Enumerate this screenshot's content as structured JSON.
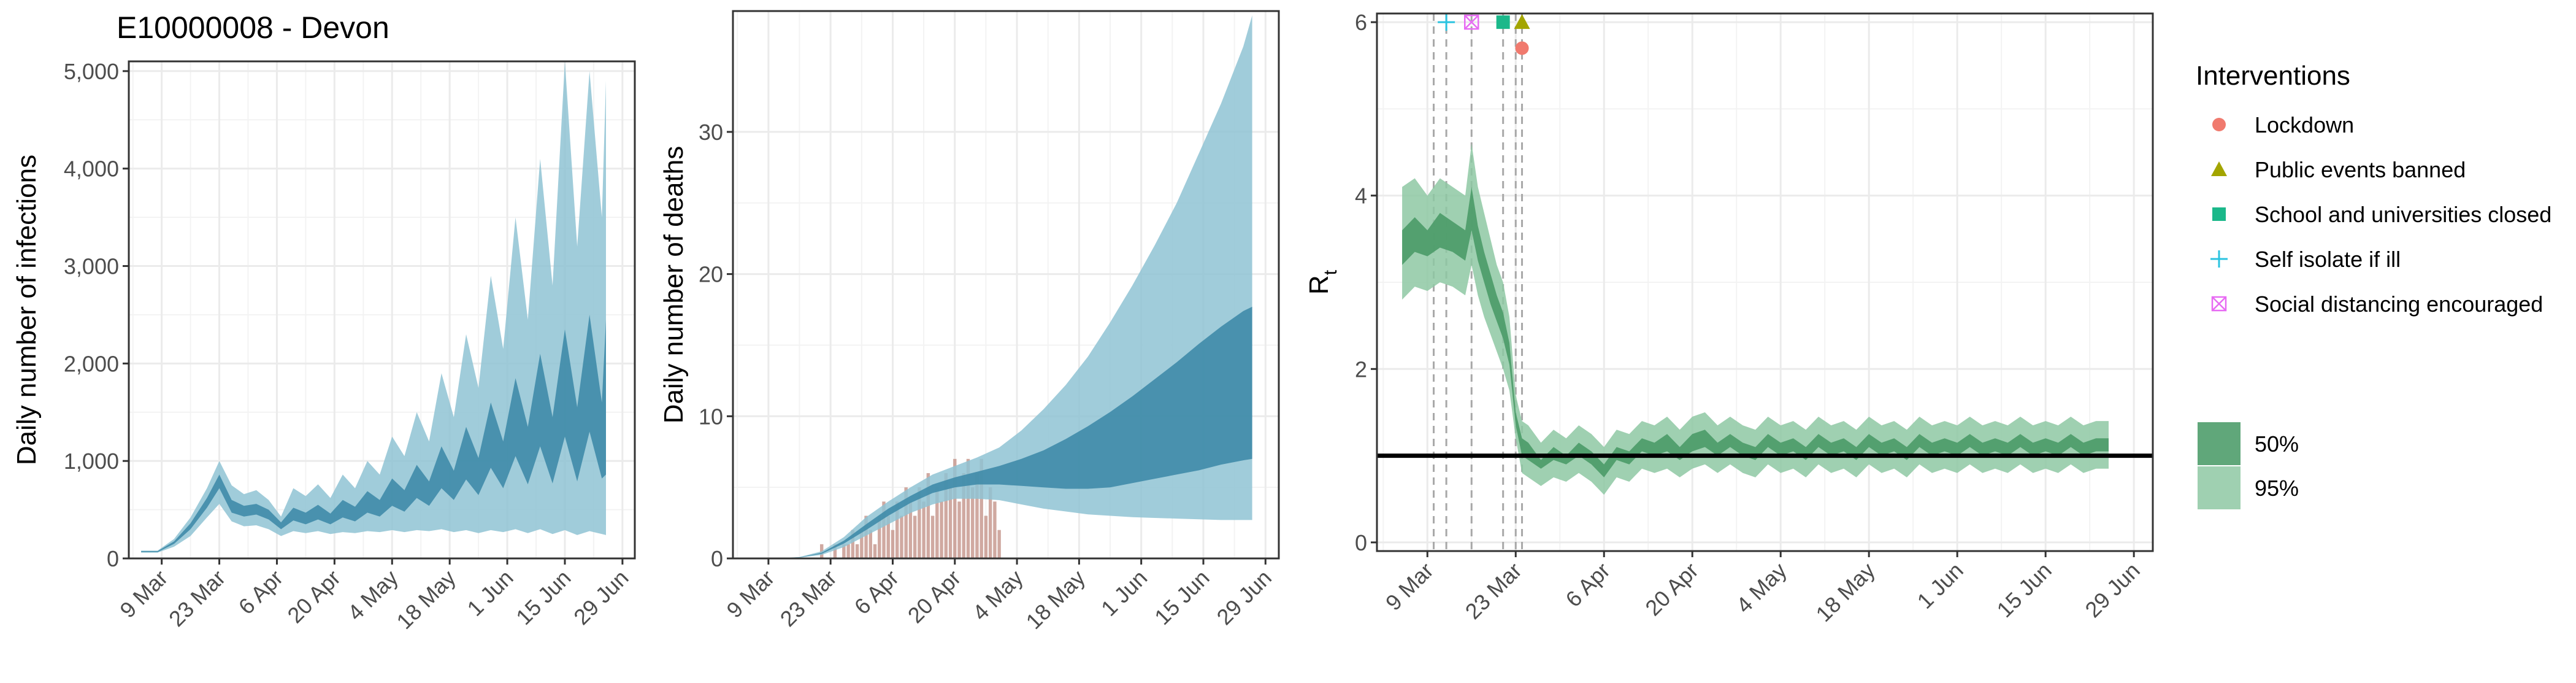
{
  "figure": {
    "title": "E10000008 - Devon"
  },
  "colors": {
    "ci95_blue": "#8fc3d3",
    "ci50_blue": "#3f8ba8",
    "median_blue": "#3f8ba8",
    "deaths_bar": "#c89a91",
    "ci95_green": "#8ec8a3",
    "ci50_green": "#4f9d6c",
    "median_green": "#3e8a5c",
    "lockdown": "#f07a6e",
    "events": "#a3a500",
    "school": "#1bb88a",
    "isolate": "#2ac3e0",
    "distancing": "#e76bf3",
    "gridline": "#ebebeb",
    "axis_text": "#4d4d4d"
  },
  "legend": {
    "interventions_title": "Interventions",
    "interventions": [
      {
        "label": "Lockdown",
        "shape": "circle",
        "color": "#f07a6e"
      },
      {
        "label": "Public events banned",
        "shape": "triangle",
        "color": "#a3a500"
      },
      {
        "label": "School and universities closed",
        "shape": "square",
        "color": "#1bb88a"
      },
      {
        "label": "Self isolate if ill",
        "shape": "plus",
        "color": "#2ac3e0"
      },
      {
        "label": "Social distancing encouraged",
        "shape": "boxx",
        "color": "#e76bf3"
      }
    ],
    "bands": [
      {
        "label": "50%",
        "color": "#4f9d6c"
      },
      {
        "label": "95%",
        "color": "#8ec8a3"
      }
    ]
  },
  "chart_data": [
    {
      "type": "area",
      "title": "E10000008 - Devon",
      "xlabel": "",
      "ylabel": "Daily number of infections",
      "x_ticks": [
        "9 Mar",
        "23 Mar",
        "6 Apr",
        "20 Apr",
        "4 May",
        "18 May",
        "1 Jun",
        "15 Jun",
        "29 Jun"
      ],
      "y_ticks": [
        "0",
        "1,000",
        "2,000",
        "3,000",
        "4,000",
        "5,000"
      ],
      "xlim": [
        "2020-03-01",
        "2020-07-02"
      ],
      "ylim": [
        0,
        5100
      ],
      "grid": true,
      "series": [
        {
          "x": [
            "2020-03-04",
            "2020-03-08",
            "2020-03-12",
            "2020-03-16",
            "2020-03-20",
            "2020-03-23",
            "2020-03-26",
            "2020-03-29",
            "2020-04-01",
            "2020-04-04",
            "2020-04-07",
            "2020-04-10",
            "2020-04-13",
            "2020-04-16",
            "2020-04-19",
            "2020-04-22",
            "2020-04-25",
            "2020-04-28",
            "2020-05-01",
            "2020-05-04",
            "2020-05-07",
            "2020-05-10",
            "2020-05-13",
            "2020-05-16",
            "2020-05-19",
            "2020-05-22",
            "2020-05-25",
            "2020-05-28",
            "2020-05-31",
            "2020-06-03",
            "2020-06-06",
            "2020-06-09",
            "2020-06-12",
            "2020-06-15",
            "2020-06-18",
            "2020-06-21",
            "2020-06-24",
            "2020-06-25"
          ],
          "lower95": [
            60,
            60,
            120,
            230,
            420,
            560,
            380,
            330,
            340,
            300,
            230,
            280,
            260,
            280,
            250,
            270,
            260,
            280,
            270,
            290,
            270,
            290,
            280,
            300,
            270,
            290,
            260,
            290,
            270,
            300,
            260,
            300,
            250,
            290,
            240,
            280,
            250,
            240
          ],
          "upper95": [
            80,
            80,
            200,
            420,
            720,
            1000,
            750,
            660,
            700,
            600,
            430,
            720,
            640,
            760,
            620,
            860,
            720,
            1000,
            860,
            1250,
            1050,
            1500,
            1200,
            1900,
            1450,
            2300,
            1750,
            2900,
            2150,
            3500,
            2450,
            4100,
            2800,
            5100,
            3200,
            5000,
            3500,
            4900
          ],
          "lower50": [
            65,
            65,
            150,
            300,
            520,
            720,
            470,
            430,
            450,
            400,
            300,
            390,
            350,
            400,
            350,
            420,
            380,
            470,
            430,
            540,
            480,
            620,
            540,
            720,
            600,
            810,
            650,
            930,
            720,
            1050,
            760,
            1150,
            770,
            1250,
            790,
            1300,
            820,
            860
          ],
          "upper50": [
            75,
            75,
            175,
            360,
            620,
            860,
            600,
            540,
            560,
            500,
            370,
            520,
            470,
            550,
            460,
            600,
            530,
            690,
            600,
            820,
            700,
            960,
            790,
            1150,
            900,
            1350,
            1030,
            1600,
            1200,
            1850,
            1350,
            2100,
            1450,
            2350,
            1550,
            2500,
            1600,
            2450
          ]
        }
      ]
    },
    {
      "type": "bar",
      "xlabel": "",
      "ylabel": "Daily number of deaths",
      "x_ticks": [
        "9 Mar",
        "23 Mar",
        "6 Apr",
        "20 Apr",
        "4 May",
        "18 May",
        "1 Jun",
        "15 Jun",
        "29 Jun"
      ],
      "y_ticks": [
        "0",
        "10",
        "20",
        "30"
      ],
      "xlim": [
        "2020-03-01",
        "2020-07-02"
      ],
      "ylim": [
        0,
        38.5
      ],
      "grid": true,
      "bars": {
        "x": [
          "2020-03-21",
          "2020-03-22",
          "2020-03-23",
          "2020-03-24",
          "2020-03-25",
          "2020-03-26",
          "2020-03-27",
          "2020-03-28",
          "2020-03-29",
          "2020-03-30",
          "2020-03-31",
          "2020-04-01",
          "2020-04-02",
          "2020-04-03",
          "2020-04-04",
          "2020-04-05",
          "2020-04-06",
          "2020-04-07",
          "2020-04-08",
          "2020-04-09",
          "2020-04-10",
          "2020-04-11",
          "2020-04-12",
          "2020-04-13",
          "2020-04-14",
          "2020-04-15",
          "2020-04-16",
          "2020-04-17",
          "2020-04-18",
          "2020-04-19",
          "2020-04-20",
          "2020-04-21",
          "2020-04-22",
          "2020-04-23",
          "2020-04-24",
          "2020-04-25",
          "2020-04-26",
          "2020-04-27",
          "2020-04-28",
          "2020-04-29",
          "2020-04-30"
        ],
        "values": [
          1,
          0,
          0,
          1,
          0,
          1,
          1,
          2,
          1,
          2,
          3,
          2,
          1,
          3,
          4,
          3,
          2,
          4,
          3,
          5,
          4,
          3,
          5,
          4,
          6,
          3,
          5,
          4,
          6,
          5,
          7,
          4,
          6,
          7,
          5,
          6,
          7,
          3,
          5,
          4,
          2
        ]
      },
      "series": [
        {
          "x": [
            "2020-03-01",
            "2020-03-06",
            "2020-03-11",
            "2020-03-16",
            "2020-03-21",
            "2020-03-26",
            "2020-03-31",
            "2020-04-05",
            "2020-04-10",
            "2020-04-15",
            "2020-04-20",
            "2020-04-25",
            "2020-04-30",
            "2020-05-05",
            "2020-05-10",
            "2020-05-15",
            "2020-05-20",
            "2020-05-25",
            "2020-05-30",
            "2020-06-04",
            "2020-06-09",
            "2020-06-14",
            "2020-06-19",
            "2020-06-24",
            "2020-06-26"
          ],
          "lower95": [
            0,
            0,
            0,
            0.05,
            0.25,
            0.8,
            1.6,
            2.4,
            3.2,
            3.8,
            4.2,
            4.2,
            4.1,
            3.8,
            3.5,
            3.3,
            3.1,
            3.0,
            2.9,
            2.85,
            2.8,
            2.75,
            2.7,
            2.7,
            2.7
          ],
          "upper95": [
            0,
            0,
            0.02,
            0.1,
            0.5,
            1.5,
            2.9,
            4.0,
            5.0,
            5.9,
            6.5,
            7.1,
            7.8,
            9.0,
            10.5,
            12.2,
            14.2,
            16.6,
            19.2,
            22.0,
            25.0,
            28.5,
            32.0,
            36.0,
            38.2
          ],
          "lower50": [
            0,
            0,
            0.01,
            0.07,
            0.33,
            1.05,
            2.0,
            3.0,
            3.9,
            4.6,
            5.0,
            5.2,
            5.2,
            5.1,
            5.0,
            4.9,
            4.9,
            5.0,
            5.3,
            5.6,
            5.9,
            6.2,
            6.6,
            6.9,
            7.0
          ],
          "upper50": [
            0,
            0,
            0.01,
            0.08,
            0.4,
            1.25,
            2.4,
            3.5,
            4.4,
            5.2,
            5.7,
            6.1,
            6.5,
            7.0,
            7.6,
            8.4,
            9.3,
            10.3,
            11.4,
            12.6,
            13.8,
            15.1,
            16.3,
            17.4,
            17.7
          ]
        }
      ]
    },
    {
      "type": "line",
      "xlabel": "",
      "ylabel": "R",
      "ylabel_subscript": "t",
      "x_ticks": [
        "9 Mar",
        "23 Mar",
        "6 Apr",
        "20 Apr",
        "4 May",
        "18 May",
        "1 Jun",
        "15 Jun",
        "29 Jun"
      ],
      "y_ticks": [
        "0",
        "2",
        "4",
        "6"
      ],
      "xlim": [
        "2020-03-01",
        "2020-07-02"
      ],
      "ylim": [
        -0.1,
        6.1
      ],
      "grid": true,
      "reference_line": 1,
      "series": [
        {
          "x": [
            "2020-03-05",
            "2020-03-07",
            "2020-03-09",
            "2020-03-11",
            "2020-03-13",
            "2020-03-15",
            "2020-03-16",
            "2020-03-17",
            "2020-03-18",
            "2020-03-19",
            "2020-03-20",
            "2020-03-21",
            "2020-03-22",
            "2020-03-23",
            "2020-03-24",
            "2020-03-25",
            "2020-03-27",
            "2020-03-29",
            "2020-03-31",
            "2020-04-02",
            "2020-04-04",
            "2020-04-06",
            "2020-04-08",
            "2020-04-10",
            "2020-04-12",
            "2020-04-14",
            "2020-04-16",
            "2020-04-18",
            "2020-04-20",
            "2020-04-22",
            "2020-04-24",
            "2020-04-26",
            "2020-04-28",
            "2020-04-30",
            "2020-05-02",
            "2020-05-04",
            "2020-05-06",
            "2020-05-08",
            "2020-05-10",
            "2020-05-12",
            "2020-05-14",
            "2020-05-16",
            "2020-05-18",
            "2020-05-20",
            "2020-05-22",
            "2020-05-24",
            "2020-05-26",
            "2020-05-28",
            "2020-05-30",
            "2020-06-01",
            "2020-06-03",
            "2020-06-05",
            "2020-06-07",
            "2020-06-09",
            "2020-06-11",
            "2020-06-13",
            "2020-06-15",
            "2020-06-17",
            "2020-06-19",
            "2020-06-21",
            "2020-06-23",
            "2020-06-25"
          ],
          "lower95": [
            2.8,
            2.95,
            2.9,
            3.0,
            2.95,
            2.85,
            3.2,
            2.85,
            2.6,
            2.4,
            2.2,
            2.0,
            1.75,
            1.2,
            0.8,
            0.75,
            0.65,
            0.75,
            0.7,
            0.8,
            0.7,
            0.55,
            0.75,
            0.7,
            0.85,
            0.8,
            0.85,
            0.75,
            0.85,
            0.9,
            0.8,
            0.9,
            0.8,
            0.75,
            0.9,
            0.8,
            0.85,
            0.75,
            0.9,
            0.8,
            0.85,
            0.75,
            0.9,
            0.8,
            0.85,
            0.75,
            0.9,
            0.8,
            0.85,
            0.8,
            0.9,
            0.8,
            0.85,
            0.8,
            0.9,
            0.8,
            0.85,
            0.8,
            0.9,
            0.8,
            0.85,
            0.85
          ],
          "upper95": [
            4.1,
            4.2,
            4.0,
            4.2,
            4.1,
            4.0,
            4.6,
            4.1,
            3.8,
            3.5,
            3.2,
            3.0,
            2.6,
            1.7,
            1.4,
            1.35,
            1.15,
            1.3,
            1.2,
            1.35,
            1.25,
            1.1,
            1.3,
            1.25,
            1.4,
            1.35,
            1.45,
            1.3,
            1.45,
            1.5,
            1.35,
            1.45,
            1.35,
            1.3,
            1.45,
            1.35,
            1.4,
            1.3,
            1.45,
            1.35,
            1.4,
            1.3,
            1.45,
            1.35,
            1.4,
            1.3,
            1.45,
            1.35,
            1.4,
            1.35,
            1.45,
            1.35,
            1.4,
            1.35,
            1.45,
            1.35,
            1.4,
            1.35,
            1.45,
            1.35,
            1.4,
            1.4
          ],
          "lower50": [
            3.2,
            3.35,
            3.3,
            3.4,
            3.35,
            3.25,
            3.6,
            3.25,
            3.0,
            2.75,
            2.55,
            2.35,
            2.05,
            1.35,
            1.0,
            0.95,
            0.85,
            0.95,
            0.9,
            1.0,
            0.9,
            0.75,
            0.95,
            0.9,
            1.05,
            1.0,
            1.05,
            0.95,
            1.05,
            1.1,
            1.0,
            1.1,
            1.0,
            0.95,
            1.1,
            1.0,
            1.05,
            0.95,
            1.1,
            1.0,
            1.05,
            0.95,
            1.1,
            1.0,
            1.05,
            0.95,
            1.1,
            1.0,
            1.05,
            1.0,
            1.1,
            1.0,
            1.05,
            1.0,
            1.1,
            1.0,
            1.05,
            1.0,
            1.1,
            1.0,
            1.05,
            1.05
          ],
          "upper50": [
            3.6,
            3.75,
            3.6,
            3.8,
            3.7,
            3.6,
            4.1,
            3.65,
            3.35,
            3.1,
            2.85,
            2.65,
            2.3,
            1.5,
            1.2,
            1.15,
            0.95,
            1.1,
            1.0,
            1.15,
            1.05,
            0.9,
            1.1,
            1.05,
            1.2,
            1.15,
            1.25,
            1.1,
            1.25,
            1.3,
            1.15,
            1.25,
            1.15,
            1.1,
            1.25,
            1.15,
            1.2,
            1.1,
            1.25,
            1.15,
            1.2,
            1.1,
            1.25,
            1.15,
            1.2,
            1.1,
            1.25,
            1.15,
            1.2,
            1.15,
            1.25,
            1.15,
            1.2,
            1.15,
            1.25,
            1.15,
            1.2,
            1.15,
            1.25,
            1.15,
            1.2,
            1.2
          ]
        }
      ],
      "interventions": [
        {
          "label": "Self isolate if ill",
          "date": "2020-03-12",
          "shape": "plus",
          "y": 6.0
        },
        {
          "label": "Social distancing encouraged",
          "date": "2020-03-16",
          "shape": "boxx",
          "y": 6.0
        },
        {
          "label": "School and universities closed",
          "date": "2020-03-21",
          "shape": "square",
          "y": 6.0
        },
        {
          "label": "Public events banned",
          "date": "2020-03-24",
          "shape": "triangle",
          "y": 6.0
        },
        {
          "label": "Lockdown",
          "date": "2020-03-24",
          "shape": "circle",
          "y": 5.7
        }
      ],
      "intervention_lines": [
        "2020-03-10",
        "2020-03-12",
        "2020-03-16",
        "2020-03-21",
        "2020-03-23",
        "2020-03-24"
      ]
    }
  ]
}
